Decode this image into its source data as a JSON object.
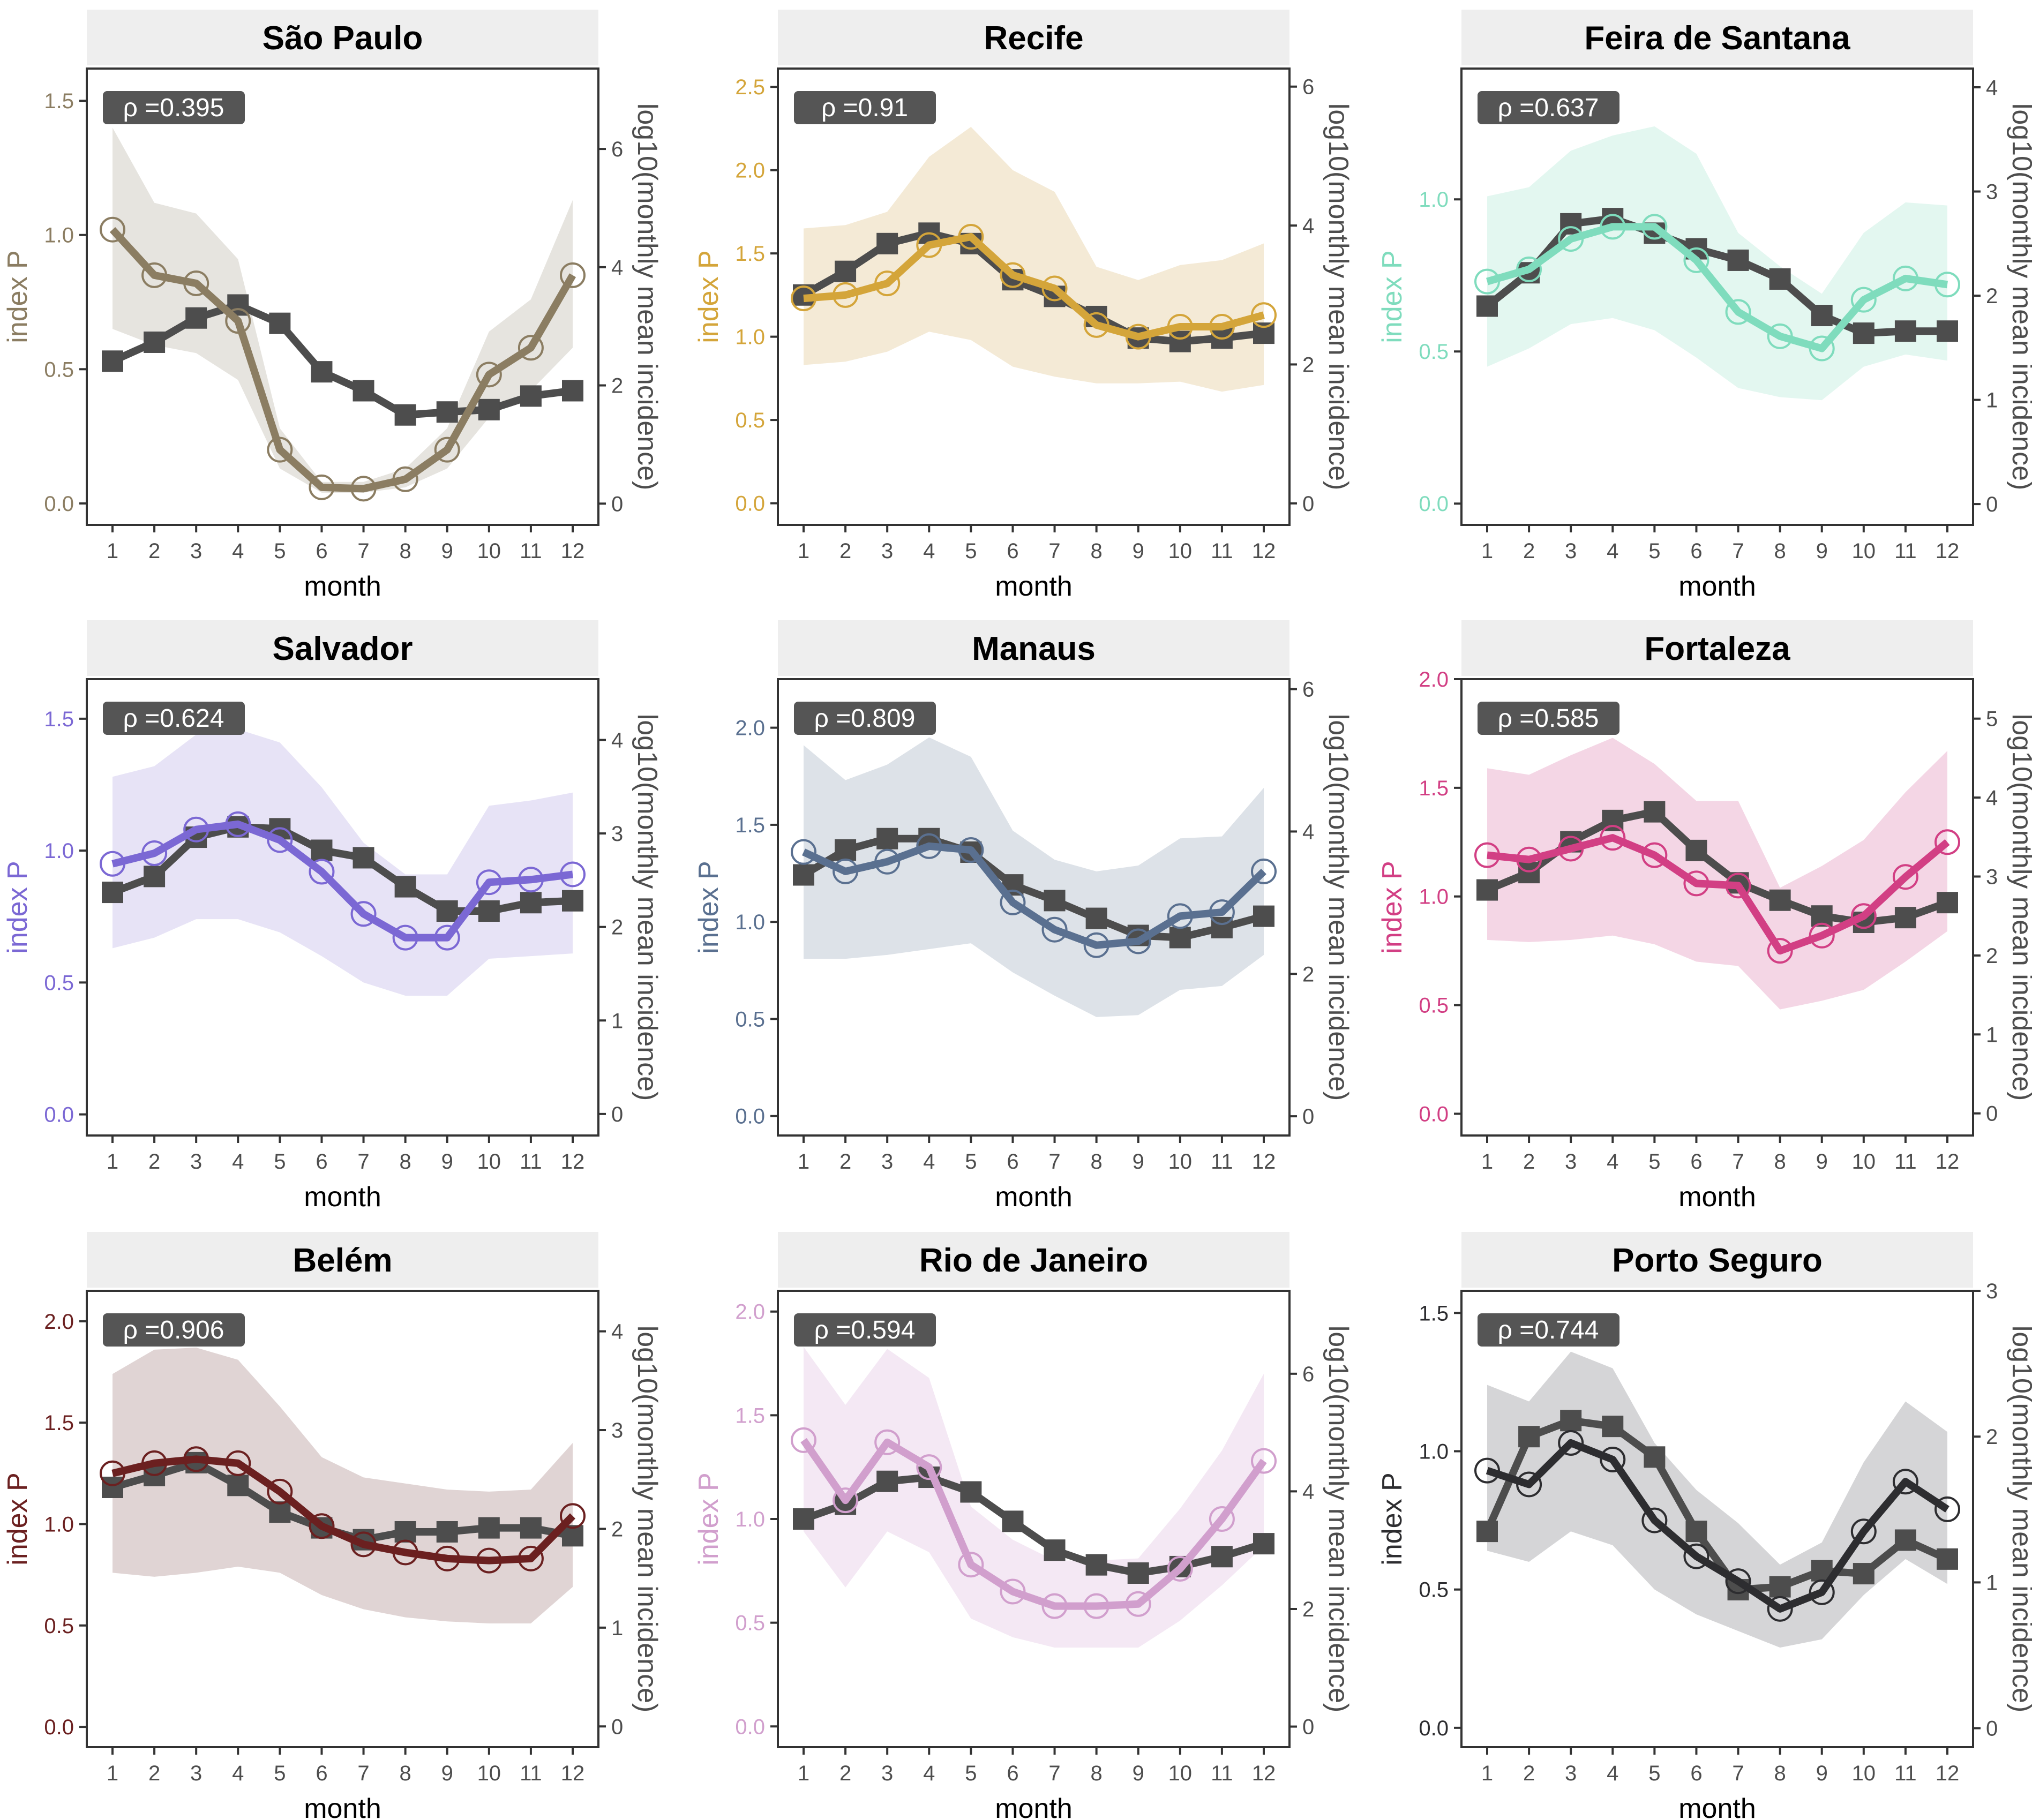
{
  "chart_data": {
    "type": "line",
    "layout": "3x3 facet grid",
    "x": [
      1,
      2,
      3,
      4,
      5,
      6,
      7,
      8,
      9,
      10,
      11,
      12
    ],
    "xlabel": "month",
    "ylabel_left": "index P",
    "ylabel_right": "log10(monthly mean incidence)",
    "panels": [
      {
        "title": "São Paulo",
        "rho_label": "ρ =0.395",
        "color": "#8b7d62",
        "ribbon_color": "#e6e4df",
        "ylim": [
          -0.08,
          1.62
        ],
        "yticks": [
          0.0,
          0.5,
          1.0,
          1.5
        ],
        "ytick_labels": [
          "0.0",
          "0.5",
          "1.0",
          "1.5"
        ],
        "rlim": [
          -0.36,
          7.36
        ],
        "rticks": [
          0,
          2,
          4,
          6
        ],
        "rtick_labels": [
          "0",
          "2",
          "4",
          "6"
        ],
        "index_p": [
          1.02,
          0.85,
          0.82,
          0.68,
          0.2,
          0.06,
          0.055,
          0.09,
          0.2,
          0.48,
          0.58,
          0.85
        ],
        "index_p_upper": [
          1.4,
          1.12,
          1.08,
          0.91,
          0.28,
          0.08,
          0.08,
          0.13,
          0.28,
          0.64,
          0.76,
          1.13
        ],
        "index_p_lower": [
          0.65,
          0.59,
          0.56,
          0.46,
          0.13,
          0.04,
          0.04,
          0.06,
          0.13,
          0.32,
          0.42,
          0.58
        ],
        "log10_incidence": [
          2.41,
          2.73,
          3.14,
          3.36,
          3.05,
          2.23,
          1.91,
          1.5,
          1.55,
          1.59,
          1.82,
          1.91
        ]
      },
      {
        "title": "Recife",
        "rho_label": "ρ =0.91",
        "color": "#d4a53a",
        "ribbon_color": "#f4ead6",
        "ylim": [
          -0.13,
          2.61
        ],
        "yticks": [
          0.0,
          0.5,
          1.0,
          1.5,
          2.0,
          2.5
        ],
        "ytick_labels": [
          "0.0",
          "0.5",
          "1.0",
          "1.5",
          "2.0",
          "2.5"
        ],
        "rlim": [
          -0.31,
          6.26
        ],
        "rticks": [
          0,
          2,
          4,
          6
        ],
        "rtick_labels": [
          "0",
          "2",
          "4",
          "6"
        ],
        "index_p": [
          1.23,
          1.25,
          1.32,
          1.55,
          1.6,
          1.37,
          1.29,
          1.07,
          1.0,
          1.06,
          1.06,
          1.13
        ],
        "index_p_upper": [
          1.65,
          1.67,
          1.75,
          2.08,
          2.26,
          2.0,
          1.87,
          1.42,
          1.34,
          1.43,
          1.46,
          1.56
        ],
        "index_p_lower": [
          0.83,
          0.85,
          0.91,
          1.03,
          0.98,
          0.82,
          0.76,
          0.72,
          0.72,
          0.73,
          0.67,
          0.71
        ],
        "log10_incidence": [
          3.0,
          3.34,
          3.74,
          3.89,
          3.74,
          3.22,
          2.98,
          2.69,
          2.38,
          2.33,
          2.38,
          2.45
        ]
      },
      {
        "title": "Feira de Santana",
        "rho_label": "ρ =0.637",
        "color": "#7fdcbd",
        "ribbon_color": "#e3f7f0",
        "ylim": [
          -0.07,
          1.43
        ],
        "yticks": [
          0.0,
          0.5,
          1.0
        ],
        "ytick_labels": [
          "0.0",
          "0.5",
          "1.0"
        ],
        "rlim": [
          -0.2,
          4.18
        ],
        "rticks": [
          0,
          1,
          2,
          3,
          4
        ],
        "rtick_labels": [
          "0",
          "1",
          "2",
          "3",
          "4"
        ],
        "index_p": [
          0.73,
          0.77,
          0.87,
          0.91,
          0.91,
          0.8,
          0.63,
          0.55,
          0.51,
          0.67,
          0.74,
          0.72
        ],
        "index_p_upper": [
          1.01,
          1.04,
          1.16,
          1.21,
          1.24,
          1.15,
          0.89,
          0.78,
          0.69,
          0.89,
          0.99,
          0.98
        ],
        "index_p_lower": [
          0.45,
          0.51,
          0.59,
          0.61,
          0.57,
          0.48,
          0.38,
          0.35,
          0.34,
          0.45,
          0.49,
          0.47
        ],
        "log10_incidence": [
          1.9,
          2.22,
          2.69,
          2.74,
          2.6,
          2.45,
          2.34,
          2.16,
          1.81,
          1.64,
          1.66,
          1.66
        ]
      },
      {
        "title": "Salvador",
        "rho_label": "ρ =0.624",
        "color": "#7b68d4",
        "ribbon_color": "#e7e3f6",
        "ylim": [
          -0.08,
          1.65
        ],
        "yticks": [
          0.0,
          0.5,
          1.0,
          1.5
        ],
        "ytick_labels": [
          "0.0",
          "0.5",
          "1.0",
          "1.5"
        ],
        "rlim": [
          -0.23,
          4.65
        ],
        "rticks": [
          0,
          1,
          2,
          3,
          4
        ],
        "rtick_labels": [
          "0",
          "1",
          "2",
          "3",
          "4"
        ],
        "index_p": [
          0.95,
          0.99,
          1.08,
          1.1,
          1.04,
          0.92,
          0.76,
          0.67,
          0.67,
          0.88,
          0.89,
          0.91
        ],
        "index_p_upper": [
          1.28,
          1.32,
          1.44,
          1.46,
          1.41,
          1.24,
          1.03,
          0.91,
          0.91,
          1.17,
          1.19,
          1.22
        ],
        "index_p_lower": [
          0.63,
          0.67,
          0.74,
          0.74,
          0.69,
          0.6,
          0.5,
          0.45,
          0.45,
          0.59,
          0.6,
          0.61
        ],
        "log10_incidence": [
          2.37,
          2.54,
          2.96,
          3.07,
          3.05,
          2.82,
          2.74,
          2.43,
          2.17,
          2.17,
          2.26,
          2.28
        ]
      },
      {
        "title": "Manaus",
        "rho_label": "ρ =0.809",
        "color": "#5a7090",
        "ribbon_color": "#dde2e8",
        "ylim": [
          -0.1,
          2.25
        ],
        "yticks": [
          0.0,
          0.5,
          1.0,
          1.5,
          2.0
        ],
        "ytick_labels": [
          "0.0",
          "0.5",
          "1.0",
          "1.5",
          "2.0"
        ],
        "rlim": [
          -0.27,
          6.14
        ],
        "rticks": [
          0,
          2,
          4,
          6
        ],
        "rtick_labels": [
          "0",
          "2",
          "4",
          "6"
        ],
        "index_p": [
          1.36,
          1.26,
          1.31,
          1.39,
          1.37,
          1.1,
          0.96,
          0.88,
          0.9,
          1.03,
          1.05,
          1.26
        ],
        "index_p_upper": [
          1.91,
          1.73,
          1.81,
          1.95,
          1.85,
          1.47,
          1.32,
          1.26,
          1.29,
          1.43,
          1.44,
          1.69
        ],
        "index_p_lower": [
          0.81,
          0.81,
          0.83,
          0.86,
          0.89,
          0.74,
          0.62,
          0.51,
          0.52,
          0.65,
          0.67,
          0.83
        ],
        "log10_incidence": [
          3.39,
          3.74,
          3.9,
          3.9,
          3.71,
          3.25,
          3.03,
          2.78,
          2.54,
          2.51,
          2.65,
          2.81
        ]
      },
      {
        "title": "Fortaleza",
        "rho_label": "ρ =0.585",
        "color": "#d23f84",
        "ribbon_color": "#f4d6e5",
        "ylim": [
          -0.1,
          2.0
        ],
        "yticks": [
          0.0,
          0.5,
          1.0,
          1.5,
          2.0
        ],
        "ytick_labels": [
          "0.0",
          "0.5",
          "1.0",
          "1.5",
          "2.0"
        ],
        "rlim": [
          -0.28,
          5.5
        ],
        "rticks": [
          0,
          1,
          2,
          3,
          4,
          5
        ],
        "rtick_labels": [
          "0",
          "1",
          "2",
          "3",
          "4",
          "5"
        ],
        "index_p": [
          1.19,
          1.17,
          1.22,
          1.27,
          1.19,
          1.06,
          1.05,
          0.75,
          0.82,
          0.91,
          1.09,
          1.25
        ],
        "index_p_upper": [
          1.59,
          1.56,
          1.65,
          1.73,
          1.61,
          1.44,
          1.44,
          1.04,
          1.14,
          1.26,
          1.48,
          1.67
        ],
        "index_p_lower": [
          0.8,
          0.79,
          0.8,
          0.82,
          0.78,
          0.7,
          0.68,
          0.48,
          0.52,
          0.57,
          0.7,
          0.84
        ],
        "log10_incidence": [
          2.83,
          3.05,
          3.44,
          3.71,
          3.82,
          3.33,
          2.92,
          2.7,
          2.5,
          2.42,
          2.48,
          2.67
        ]
      },
      {
        "title": "Belém",
        "rho_label": "ρ =0.906",
        "color": "#6b2020",
        "ribbon_color": "#e0d4d4",
        "ylim": [
          -0.1,
          2.15
        ],
        "yticks": [
          0.0,
          0.5,
          1.0,
          1.5,
          2.0
        ],
        "ytick_labels": [
          "0.0",
          "0.5",
          "1.0",
          "1.5",
          "2.0"
        ],
        "rlim": [
          -0.21,
          4.41
        ],
        "rticks": [
          0,
          1,
          2,
          3,
          4
        ],
        "rtick_labels": [
          "0",
          "1",
          "2",
          "3",
          "4"
        ],
        "index_p": [
          1.25,
          1.3,
          1.32,
          1.3,
          1.16,
          0.99,
          0.9,
          0.86,
          0.83,
          0.82,
          0.83,
          1.04
        ],
        "index_p_upper": [
          1.74,
          1.86,
          1.87,
          1.81,
          1.58,
          1.33,
          1.23,
          1.2,
          1.17,
          1.16,
          1.17,
          1.4
        ],
        "index_p_lower": [
          0.76,
          0.74,
          0.76,
          0.79,
          0.76,
          0.65,
          0.58,
          0.54,
          0.52,
          0.51,
          0.51,
          0.69
        ],
        "log10_incidence": [
          2.42,
          2.54,
          2.67,
          2.44,
          2.17,
          2.01,
          1.89,
          1.97,
          1.97,
          2.01,
          2.01,
          1.93
        ]
      },
      {
        "title": "Rio de Janeiro",
        "rho_label": "ρ =0.594",
        "color": "#d19fcd",
        "ribbon_color": "#f4e8f4",
        "ylim": [
          -0.1,
          2.1
        ],
        "yticks": [
          0.0,
          0.5,
          1.0,
          1.5,
          2.0
        ],
        "ytick_labels": [
          "0.0",
          "0.5",
          "1.0",
          "1.5",
          "2.0"
        ],
        "rlim": [
          -0.35,
          7.41
        ],
        "rticks": [
          0,
          2,
          4,
          6
        ],
        "rtick_labels": [
          "0",
          "2",
          "4",
          "6"
        ],
        "index_p": [
          1.38,
          1.09,
          1.37,
          1.25,
          0.78,
          0.65,
          0.58,
          0.58,
          0.59,
          0.76,
          1.0,
          1.28
        ],
        "index_p_upper": [
          1.83,
          1.55,
          1.82,
          1.68,
          1.06,
          0.9,
          0.8,
          0.8,
          0.81,
          1.05,
          1.33,
          1.7
        ],
        "index_p_lower": [
          0.94,
          0.67,
          0.94,
          0.84,
          0.52,
          0.43,
          0.38,
          0.38,
          0.38,
          0.51,
          0.68,
          0.87
        ],
        "log10_incidence": [
          3.53,
          3.78,
          4.17,
          4.24,
          3.99,
          3.49,
          3.0,
          2.75,
          2.61,
          2.72,
          2.89,
          3.11
        ]
      },
      {
        "title": "Porto Seguro",
        "rho_label": "ρ =0.744",
        "color": "#2d2d30",
        "ribbon_color": "#d5d5d7",
        "ylim": [
          -0.07,
          1.58
        ],
        "yticks": [
          0.0,
          0.5,
          1.0,
          1.5
        ],
        "ytick_labels": [
          "0.0",
          "0.5",
          "1.0",
          "1.5"
        ],
        "rlim": [
          -0.13,
          3.0
        ],
        "rticks": [
          0,
          1,
          2,
          3
        ],
        "rtick_labels": [
          "0",
          "1",
          "2",
          "3"
        ],
        "index_p": [
          0.93,
          0.88,
          1.03,
          0.97,
          0.75,
          0.62,
          0.53,
          0.43,
          0.49,
          0.71,
          0.89,
          0.79
        ],
        "index_p_upper": [
          1.24,
          1.18,
          1.36,
          1.3,
          1.03,
          0.86,
          0.74,
          0.59,
          0.67,
          0.96,
          1.18,
          1.07
        ],
        "index_p_lower": [
          0.64,
          0.6,
          0.71,
          0.66,
          0.5,
          0.41,
          0.35,
          0.29,
          0.32,
          0.48,
          0.61,
          0.52
        ],
        "log10_incidence": [
          1.35,
          2.0,
          2.11,
          2.07,
          1.86,
          1.35,
          0.95,
          0.97,
          1.08,
          1.06,
          1.29,
          1.16
        ]
      }
    ],
    "incidence_color": "#4d4d4d",
    "strip_color": "#eeeeee",
    "rho_box_color": "#555555"
  }
}
